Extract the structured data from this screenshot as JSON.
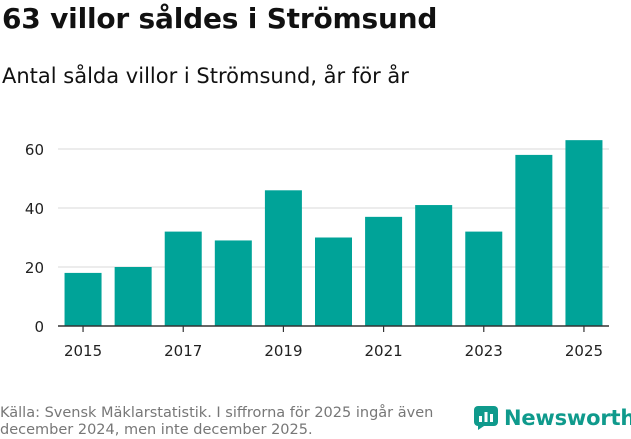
{
  "header": {
    "title": "63 villor såldes i Strömsund",
    "subtitle": "Antal sålda villor i Strömsund, år för år"
  },
  "footer": {
    "source": "Källa: Svensk Mäklarstatistik. I siffrorna för 2025 ingår även december 2024, men inte december 2025.",
    "brand": "Newsworthy"
  },
  "colors": {
    "bar": "#00a398",
    "grid": "#d9d9d9",
    "axis": "#333333",
    "brand": "#0f9a8c"
  },
  "chart_data": {
    "type": "bar",
    "title": "Antal sålda villor i Strömsund, år för år",
    "xlabel": "",
    "ylabel": "",
    "categories": [
      "2015",
      "2016",
      "2017",
      "2018",
      "2019",
      "2020",
      "2021",
      "2022",
      "2023",
      "2024",
      "2025"
    ],
    "values": [
      18,
      20,
      32,
      29,
      46,
      30,
      37,
      41,
      32,
      58,
      63
    ],
    "ylim": [
      0,
      70
    ],
    "yticks": [
      0,
      20,
      40,
      60
    ],
    "xtick_labels": [
      "2015",
      "2017",
      "2019",
      "2021",
      "2023",
      "2025"
    ],
    "grid": true
  }
}
